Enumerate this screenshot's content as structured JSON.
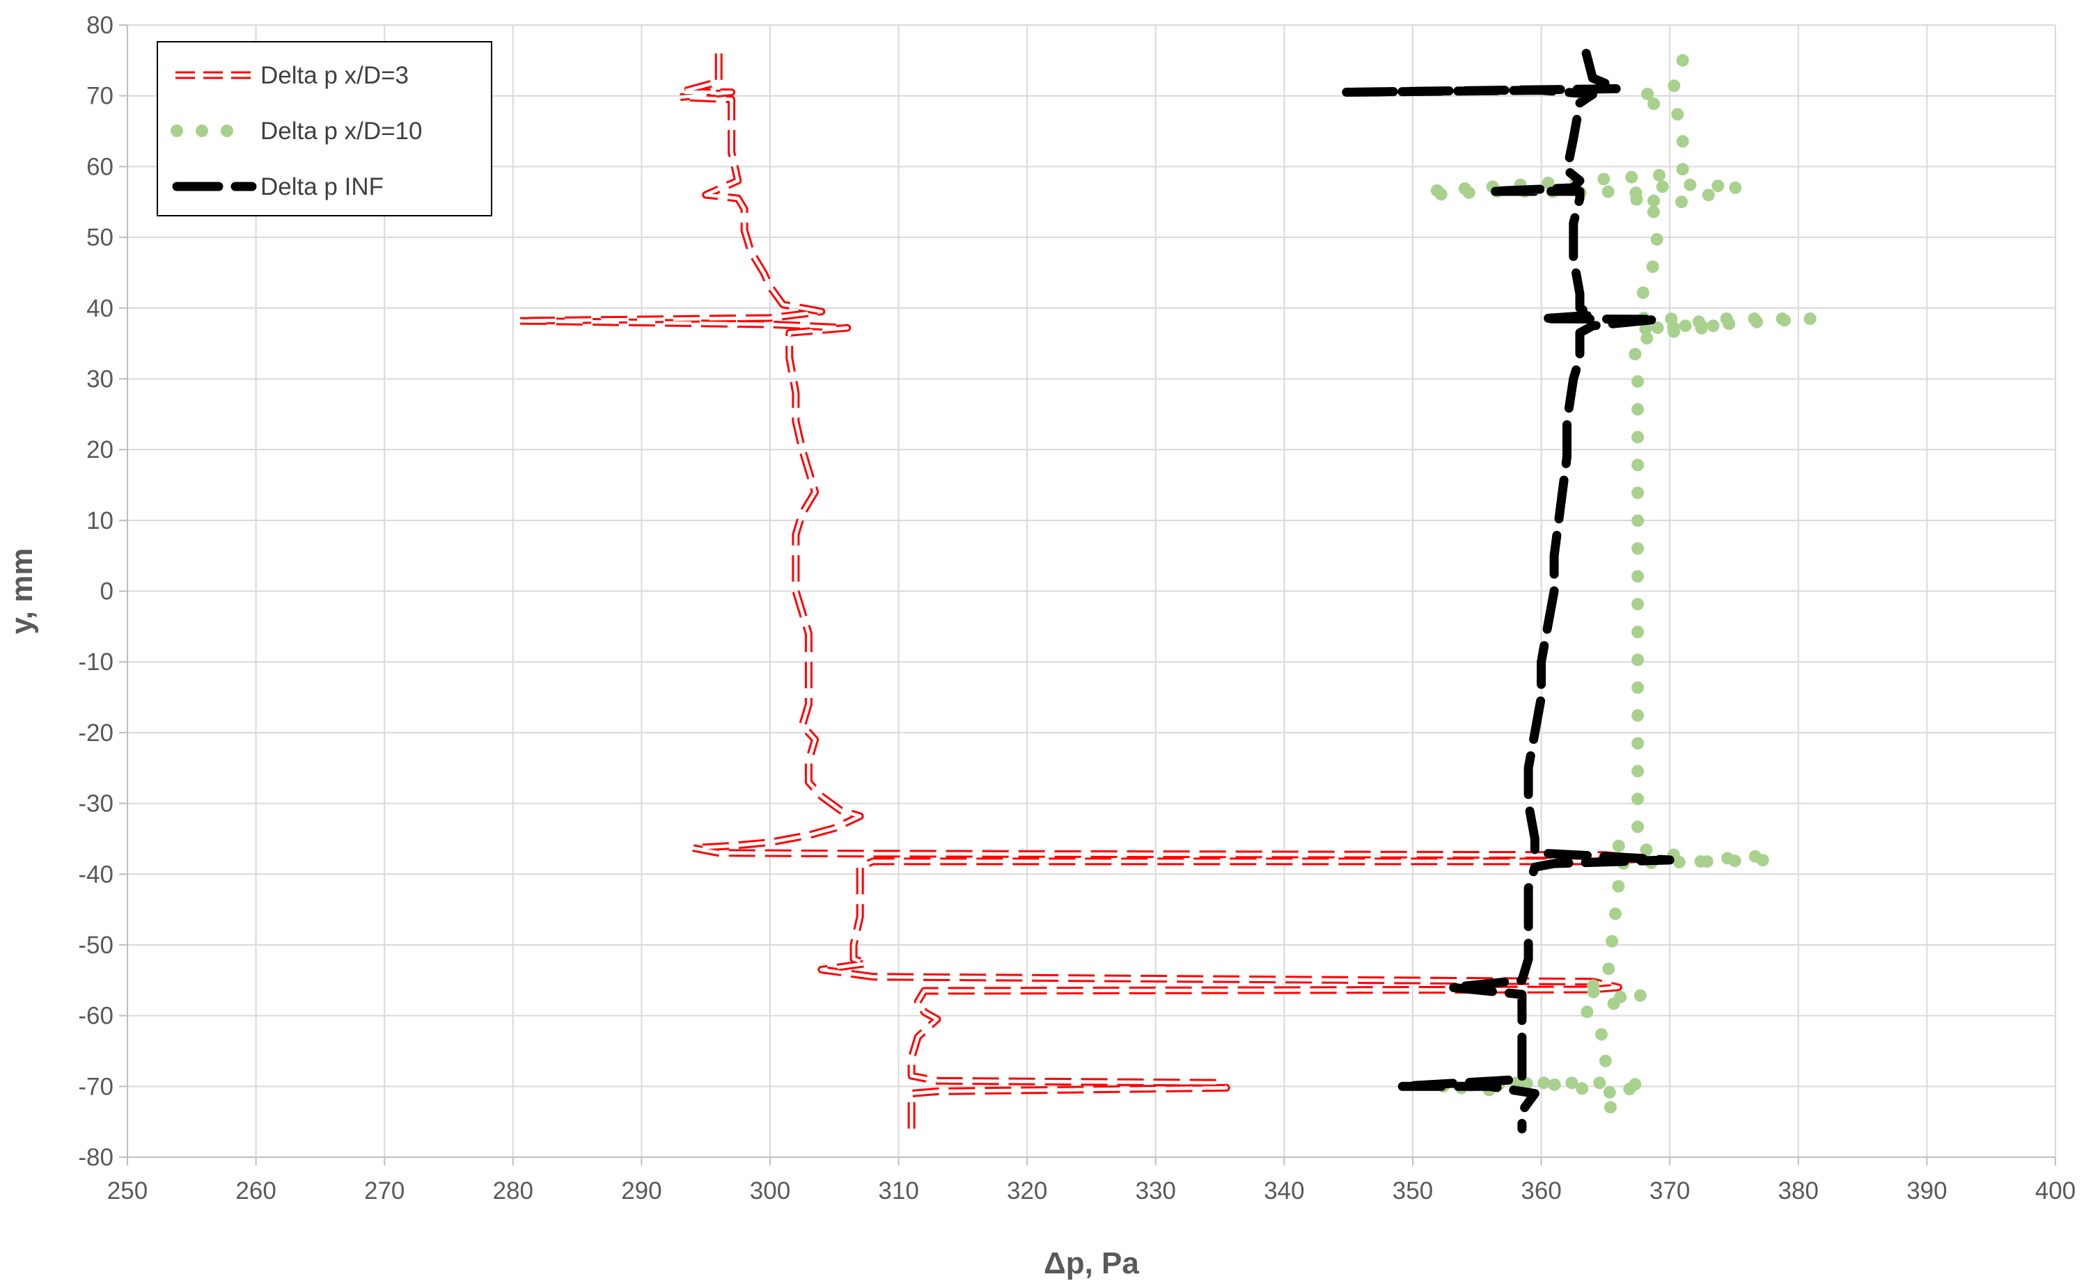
{
  "chart_data": {
    "type": "line",
    "xlabel": "Δp, Pa",
    "ylabel": "y, mm",
    "xlim": [
      250,
      400
    ],
    "ylim": [
      -80,
      80
    ],
    "x_ticks": [
      250,
      260,
      270,
      280,
      290,
      300,
      310,
      320,
      330,
      340,
      350,
      360,
      370,
      380,
      390,
      400
    ],
    "y_ticks": [
      80,
      70,
      60,
      50,
      40,
      30,
      20,
      10,
      0,
      -10,
      -20,
      -30,
      -40,
      -50,
      -60,
      -70,
      -80
    ],
    "grid": true,
    "legend_position": "top-left",
    "series": [
      {
        "name": "Delta p x/D=3",
        "color": "#ff0000",
        "style": "dashed-outline",
        "points": [
          [
            296,
            76
          ],
          [
            296,
            72
          ],
          [
            293,
            70.5
          ],
          [
            297,
            70.5
          ],
          [
            293,
            69.8
          ],
          [
            297,
            69.5
          ],
          [
            297,
            66
          ],
          [
            297,
            62
          ],
          [
            297.5,
            58
          ],
          [
            295,
            56
          ],
          [
            297.5,
            55.5
          ],
          [
            298,
            54
          ],
          [
            298,
            51
          ],
          [
            298.5,
            48
          ],
          [
            299.5,
            45
          ],
          [
            300,
            43
          ],
          [
            301,
            40.5
          ],
          [
            304,
            39.5
          ],
          [
            300,
            38.6
          ],
          [
            280.5,
            38.2
          ],
          [
            300,
            37.7
          ],
          [
            306,
            37.2
          ],
          [
            301.5,
            36.5
          ],
          [
            301.5,
            33
          ],
          [
            302,
            28
          ],
          [
            302,
            24
          ],
          [
            302.5,
            20
          ],
          [
            303,
            17
          ],
          [
            303.5,
            14
          ],
          [
            302.5,
            11
          ],
          [
            302,
            8
          ],
          [
            302,
            4
          ],
          [
            302,
            0
          ],
          [
            302.5,
            -3
          ],
          [
            303,
            -6
          ],
          [
            303,
            -9
          ],
          [
            303,
            -13
          ],
          [
            303,
            -16
          ],
          [
            302.5,
            -19
          ],
          [
            303.5,
            -21
          ],
          [
            303,
            -24
          ],
          [
            303,
            -27
          ],
          [
            304,
            -29
          ],
          [
            305.5,
            -31
          ],
          [
            307,
            -31.8
          ],
          [
            305,
            -33.5
          ],
          [
            303,
            -34.5
          ],
          [
            300,
            -35.5
          ],
          [
            297,
            -36
          ],
          [
            294,
            -36.3
          ],
          [
            296,
            -37
          ],
          [
            307,
            -37.1
          ],
          [
            365,
            -37.3
          ],
          [
            368,
            -37.8
          ],
          [
            365,
            -38.2
          ],
          [
            308,
            -38.2
          ],
          [
            307,
            -39
          ],
          [
            307,
            -42
          ],
          [
            307,
            -46
          ],
          [
            306.5,
            -50
          ],
          [
            306.5,
            -52
          ],
          [
            307.5,
            -52.6
          ],
          [
            304,
            -53.5
          ],
          [
            308,
            -54.5
          ],
          [
            364,
            -55.2
          ],
          [
            366,
            -56
          ],
          [
            364,
            -56.3
          ],
          [
            312,
            -56.5
          ],
          [
            311.5,
            -58
          ],
          [
            312,
            -59.5
          ],
          [
            313,
            -60.5
          ],
          [
            311.5,
            -63
          ],
          [
            311,
            -66
          ],
          [
            311,
            -68.5
          ],
          [
            313,
            -69.2
          ],
          [
            335,
            -69.5
          ],
          [
            335.5,
            -70.2
          ],
          [
            313,
            -70.7
          ],
          [
            311,
            -71
          ],
          [
            311,
            -73
          ],
          [
            311,
            -76
          ]
        ]
      },
      {
        "name": "Delta p x/D=10",
        "color": "#a9d18e",
        "style": "dotted",
        "points": [
          [
            371,
            75
          ],
          [
            370.5,
            71.5
          ],
          [
            368.5,
            70.5
          ],
          [
            367.5,
            69.5
          ],
          [
            370.5,
            68
          ],
          [
            371,
            65
          ],
          [
            371,
            61
          ],
          [
            371,
            59
          ],
          [
            351,
            56.5
          ],
          [
            351.5,
            56
          ],
          [
            356,
            56.5
          ],
          [
            360,
            56.5
          ],
          [
            363,
            56.3
          ],
          [
            366,
            56.5
          ],
          [
            368,
            56.2
          ],
          [
            369.5,
            57.2
          ],
          [
            370.5,
            57.5
          ],
          [
            373,
            57.3
          ],
          [
            375.5,
            57.2
          ],
          [
            371,
            55
          ],
          [
            367,
            55.3
          ],
          [
            368.5,
            55.5
          ],
          [
            369,
            51.5
          ],
          [
            369,
            48.5
          ],
          [
            368.5,
            44.5
          ],
          [
            367.5,
            40.5
          ],
          [
            368,
            38.5
          ],
          [
            370,
            38.5
          ],
          [
            372,
            38
          ],
          [
            374,
            38.5
          ],
          [
            377,
            38.5
          ],
          [
            381,
            38.5
          ],
          [
            367.5,
            37
          ],
          [
            371,
            37.5
          ],
          [
            374,
            37.5
          ],
          [
            369.5,
            36.5
          ],
          [
            367,
            35
          ],
          [
            367.5,
            32.5
          ],
          [
            367.5,
            28
          ],
          [
            367.5,
            22.5
          ],
          [
            367.5,
            18.5
          ],
          [
            367.5,
            14
          ],
          [
            367.5,
            10
          ],
          [
            367.5,
            5
          ],
          [
            367.5,
            0
          ],
          [
            367.5,
            -5
          ],
          [
            367.5,
            -10
          ],
          [
            367.5,
            -15.5
          ],
          [
            367.5,
            -20
          ],
          [
            367.5,
            -25
          ],
          [
            367.5,
            -29.5
          ],
          [
            367.5,
            -33.5
          ],
          [
            366,
            -36
          ],
          [
            368,
            -36.5
          ],
          [
            371,
            -37.5
          ],
          [
            373,
            -38.5
          ],
          [
            375,
            -37.5
          ],
          [
            377,
            -37.5
          ],
          [
            378,
            -38
          ],
          [
            366,
            -38.5
          ],
          [
            366,
            -39.5
          ],
          [
            366,
            -43.5
          ],
          [
            365.5,
            -48
          ],
          [
            365.5,
            -51
          ],
          [
            365,
            -55.5
          ],
          [
            363,
            -56
          ],
          [
            365.5,
            -57.5
          ],
          [
            368,
            -57
          ],
          [
            363.5,
            -59.5
          ],
          [
            365,
            -63.5
          ],
          [
            365,
            -67.5
          ],
          [
            365,
            -69.5
          ],
          [
            363,
            -69.5
          ],
          [
            358,
            -69.5
          ],
          [
            356,
            -70.5
          ],
          [
            352,
            -70
          ],
          [
            360,
            -69.5
          ],
          [
            366,
            -71
          ],
          [
            368,
            -69
          ],
          [
            365.5,
            -72
          ],
          [
            365,
            -76
          ]
        ]
      },
      {
        "name": "Delta p INF",
        "color": "#000000",
        "style": "long-dash",
        "points": [
          [
            363.5,
            76
          ],
          [
            364,
            72.5
          ],
          [
            366,
            71
          ],
          [
            344.5,
            70.5
          ],
          [
            360,
            70.8
          ],
          [
            364,
            70.2
          ],
          [
            363,
            69
          ],
          [
            362.5,
            64
          ],
          [
            362,
            59.5
          ],
          [
            363,
            58
          ],
          [
            362.5,
            57
          ],
          [
            356,
            56.5
          ],
          [
            363,
            56.5
          ],
          [
            363,
            55.5
          ],
          [
            362.5,
            52
          ],
          [
            362.5,
            47
          ],
          [
            363,
            42
          ],
          [
            363,
            40
          ],
          [
            364,
            39
          ],
          [
            360,
            38.5
          ],
          [
            369,
            38.4
          ],
          [
            364,
            37.5
          ],
          [
            363,
            36.5
          ],
          [
            363,
            33
          ],
          [
            362.5,
            30
          ],
          [
            362,
            24
          ],
          [
            362,
            19
          ],
          [
            361.5,
            12
          ],
          [
            361,
            5
          ],
          [
            361,
            0
          ],
          [
            360.5,
            -5
          ],
          [
            360,
            -10
          ],
          [
            360,
            -15
          ],
          [
            359.5,
            -20
          ],
          [
            359,
            -25
          ],
          [
            359,
            -30
          ],
          [
            359.5,
            -35
          ],
          [
            359.5,
            -37
          ],
          [
            365,
            -37.5
          ],
          [
            370,
            -38
          ],
          [
            361,
            -38.5
          ],
          [
            359.5,
            -39
          ],
          [
            359,
            -42
          ],
          [
            359,
            -47
          ],
          [
            359,
            -52
          ],
          [
            358.5,
            -55
          ],
          [
            353,
            -56
          ],
          [
            358.5,
            -57
          ],
          [
            358.5,
            -60
          ],
          [
            358.5,
            -65
          ],
          [
            358.5,
            -69
          ],
          [
            349,
            -70
          ],
          [
            356,
            -70
          ],
          [
            359.5,
            -71
          ],
          [
            358.5,
            -73.5
          ],
          [
            358.5,
            -76
          ]
        ]
      }
    ]
  }
}
